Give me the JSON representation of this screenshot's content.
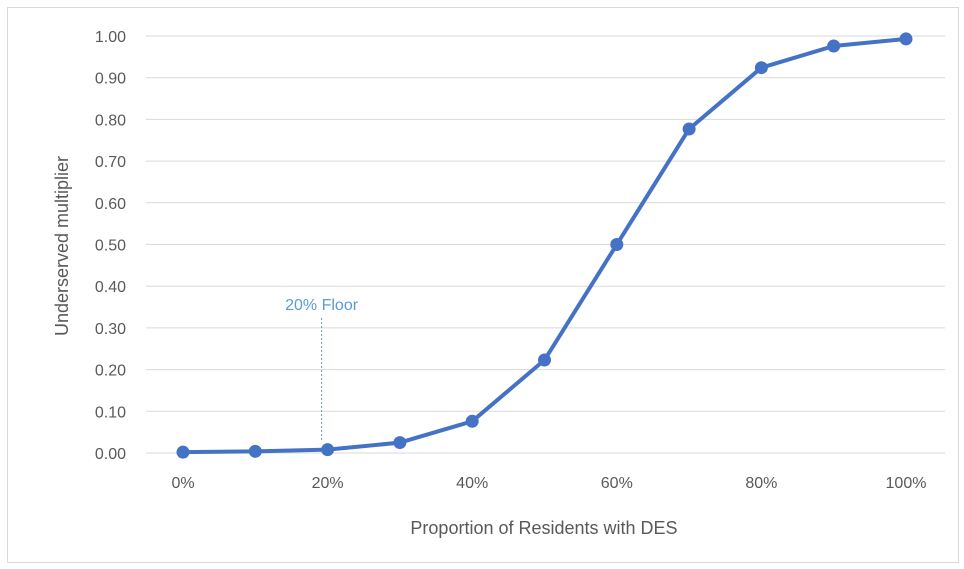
{
  "chart_data": {
    "type": "line",
    "xlabel": "Proportion of Residents with DES",
    "ylabel": "Underserved multiplier",
    "x": [
      0,
      0.1,
      0.2,
      0.3,
      0.4,
      0.5,
      0.6,
      0.7,
      0.8,
      0.9,
      1.0
    ],
    "x_tick_labels": [
      "0%",
      "20%",
      "40%",
      "60%",
      "80%",
      "100%"
    ],
    "x_ticks": [
      0,
      0.2,
      0.4,
      0.6,
      0.8,
      1.0
    ],
    "y_tick_labels": [
      "0.00",
      "0.10",
      "0.20",
      "0.30",
      "0.40",
      "0.50",
      "0.60",
      "0.70",
      "0.80",
      "0.90",
      "1.00"
    ],
    "y_ticks": [
      0,
      0.1,
      0.2,
      0.3,
      0.4,
      0.5,
      0.6,
      0.7,
      0.8,
      0.9,
      1.0
    ],
    "ylim": [
      0,
      1.0
    ],
    "xlim": [
      0,
      1.0
    ],
    "grid": "horizontal",
    "series": [
      {
        "values": [
          0.002,
          0.004,
          0.008,
          0.025,
          0.076,
          0.223,
          0.5,
          0.777,
          0.924,
          0.976,
          0.993
        ]
      }
    ],
    "colors": {
      "series": "#4472c4",
      "annotation": "#5b9bd5",
      "grid": "#d9d9d9",
      "text": "#595959"
    },
    "annotations": [
      {
        "text": "20% Floor",
        "x": 0.2
      }
    ]
  }
}
